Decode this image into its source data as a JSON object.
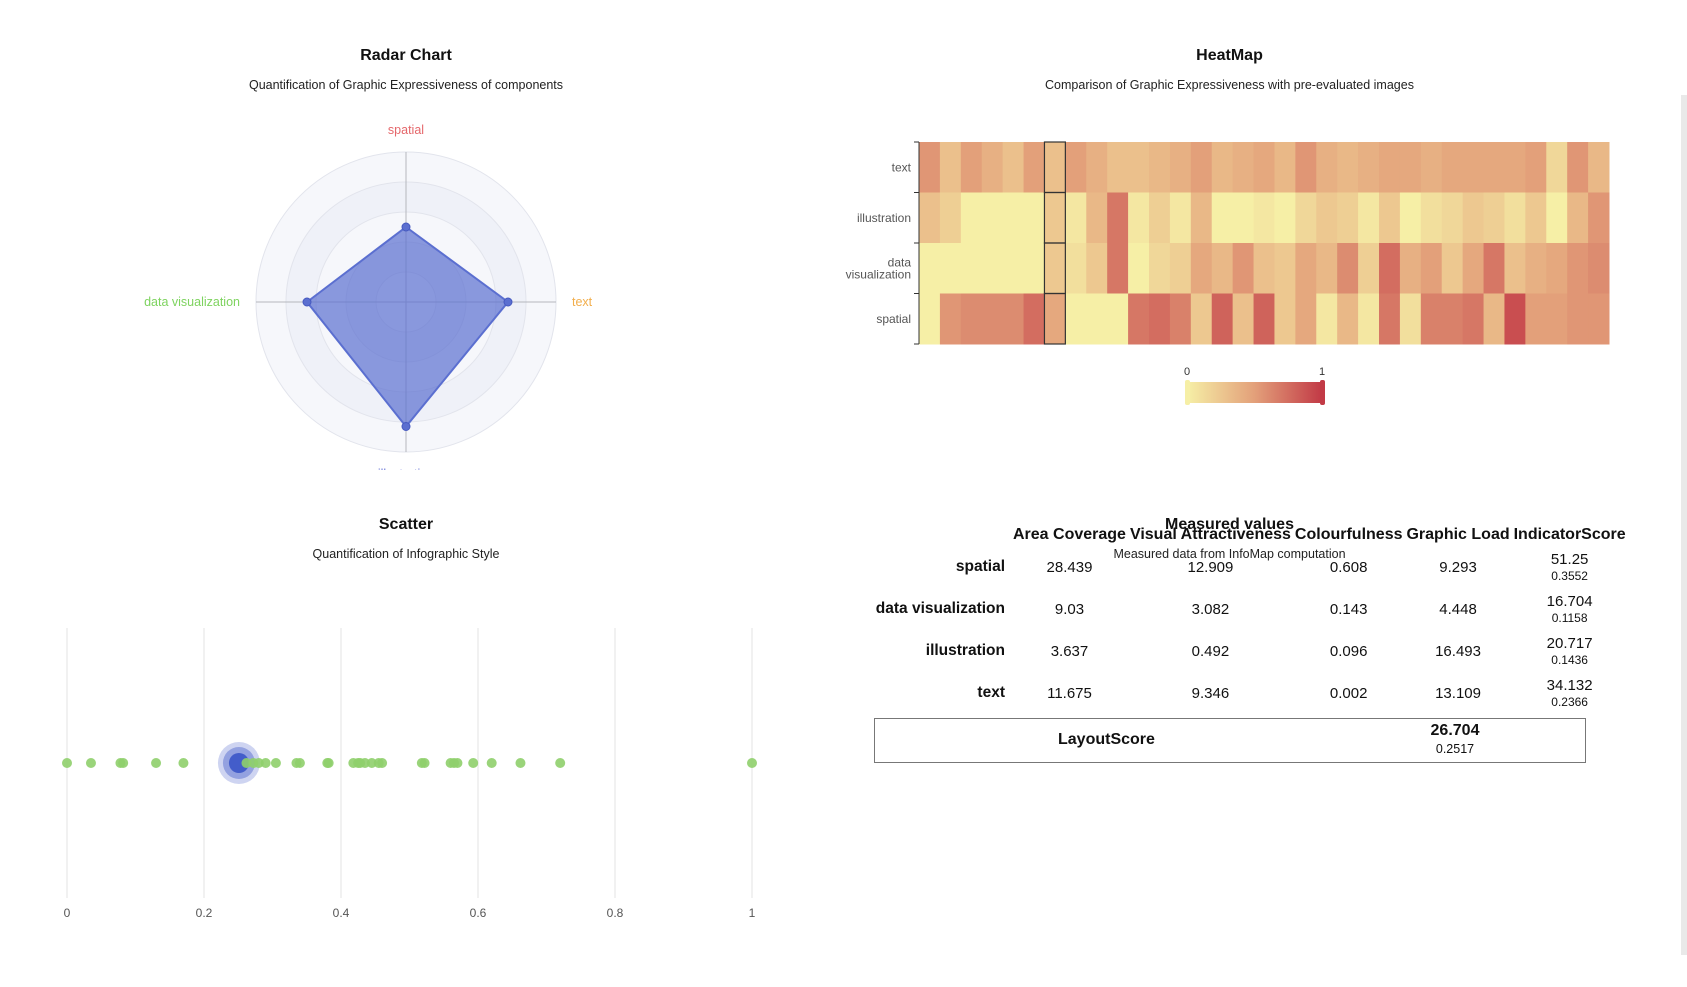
{
  "charts": {
    "radar": {
      "title": "Radar Chart",
      "subtitle": "Quantification of Graphic Expressiveness of components"
    },
    "heatmap": {
      "title": "HeatMap",
      "subtitle": "Comparison of Graphic Expressiveness with pre-evaluated images",
      "legend_min": "0",
      "legend_max": "1"
    },
    "scatter": {
      "title": "Scatter",
      "subtitle": "Quantification of Infographic Style"
    },
    "measured": {
      "title": "Measured values",
      "subtitle": "Measured data from InfoMap computation"
    }
  },
  "chart_data": [
    {
      "type": "radar",
      "title": "Radar Chart",
      "subtitle": "Quantification of Graphic Expressiveness of components",
      "indicators": [
        {
          "name": "spatial",
          "color": "#e5676b"
        },
        {
          "name": "text",
          "color": "#f2ae4b"
        },
        {
          "name": "illustration",
          "color": "#6f7bd8"
        },
        {
          "name": "data visualization",
          "color": "#7ed35f"
        }
      ],
      "values": [
        0.5,
        0.68,
        0.83,
        0.66
      ],
      "range": [
        0,
        1
      ],
      "series_color": "#5b6fd0"
    },
    {
      "type": "heatmap",
      "title": "HeatMap",
      "subtitle": "Comparison of Graphic Expressiveness with pre-evaluated images",
      "rows": [
        "text",
        "illustration",
        "data visualization",
        "spatial"
      ],
      "highlight_column": 6,
      "color_range": [
        0,
        1
      ],
      "values": [
        [
          0.55,
          0.3,
          0.5,
          0.4,
          0.3,
          0.5,
          0.3,
          0.5,
          0.4,
          0.3,
          0.3,
          0.35,
          0.4,
          0.5,
          0.35,
          0.4,
          0.45,
          0.35,
          0.55,
          0.4,
          0.35,
          0.4,
          0.45,
          0.45,
          0.4,
          0.45,
          0.45,
          0.45,
          0.45,
          0.5,
          0.15,
          0.55,
          0.35
        ],
        [
          0.3,
          0.2,
          0.0,
          0.0,
          0.0,
          0.0,
          0.25,
          0.05,
          0.35,
          0.7,
          0.05,
          0.2,
          0.05,
          0.35,
          0.0,
          0.0,
          0.05,
          0.0,
          0.15,
          0.25,
          0.2,
          0.05,
          0.25,
          0.0,
          0.1,
          0.15,
          0.25,
          0.2,
          0.1,
          0.25,
          0.0,
          0.35,
          0.55
        ],
        [
          0.0,
          0.0,
          0.0,
          0.0,
          0.0,
          0.0,
          0.25,
          0.1,
          0.25,
          0.7,
          0.0,
          0.15,
          0.2,
          0.45,
          0.35,
          0.55,
          0.3,
          0.25,
          0.45,
          0.35,
          0.6,
          0.2,
          0.75,
          0.4,
          0.5,
          0.25,
          0.45,
          0.7,
          0.3,
          0.4,
          0.45,
          0.55,
          0.6
        ],
        [
          0.0,
          0.55,
          0.6,
          0.6,
          0.6,
          0.75,
          0.45,
          0.0,
          0.0,
          0.0,
          0.7,
          0.75,
          0.65,
          0.25,
          0.8,
          0.3,
          0.8,
          0.25,
          0.45,
          0.05,
          0.35,
          0.05,
          0.7,
          0.1,
          0.65,
          0.65,
          0.7,
          0.35,
          0.9,
          0.5,
          0.5,
          0.55,
          0.55
        ]
      ]
    },
    {
      "type": "scatter",
      "title": "Scatter",
      "subtitle": "Quantification of Infographic Style",
      "x_ticks": [
        "0",
        "0.2",
        "0.4",
        "0.6",
        "0.8",
        "1"
      ],
      "xlim": [
        0,
        1
      ],
      "points": [
        0.0,
        0.035,
        0.078,
        0.082,
        0.13,
        0.17,
        0.262,
        0.272,
        0.28,
        0.29,
        0.305,
        0.335,
        0.34,
        0.38,
        0.382,
        0.418,
        0.425,
        0.428,
        0.435,
        0.445,
        0.455,
        0.46,
        0.518,
        0.522,
        0.56,
        0.565,
        0.57,
        0.593,
        0.62,
        0.662,
        0.72,
        1.0
      ],
      "point_color": "#8fcf6b",
      "highlight": {
        "x": 0.251,
        "color": "#3b55c8"
      }
    },
    {
      "type": "table",
      "title": "Measured values",
      "subtitle": "Measured data from InfoMap computation",
      "columns": [
        "Area Coverage",
        "Visual Attractiveness",
        "Colourfulness",
        "Graphic Load",
        "IndicatorScore"
      ],
      "rows": [
        {
          "label": "spatial",
          "values": [
            "28.439",
            "12.909",
            "0.608",
            "9.293"
          ],
          "score": "51.25",
          "score_norm": "0.3552"
        },
        {
          "label": "data visualization",
          "values": [
            "9.03",
            "3.082",
            "0.143",
            "4.448"
          ],
          "score": "16.704",
          "score_norm": "0.1158"
        },
        {
          "label": "illustration",
          "values": [
            "3.637",
            "0.492",
            "0.096",
            "16.493"
          ],
          "score": "20.717",
          "score_norm": "0.1436"
        },
        {
          "label": "text",
          "values": [
            "11.675",
            "9.346",
            "0.002",
            "13.109"
          ],
          "score": "34.132",
          "score_norm": "0.2366"
        }
      ],
      "layout_score": {
        "label": "LayoutScore",
        "value": "26.704",
        "norm": "0.2517"
      }
    }
  ]
}
